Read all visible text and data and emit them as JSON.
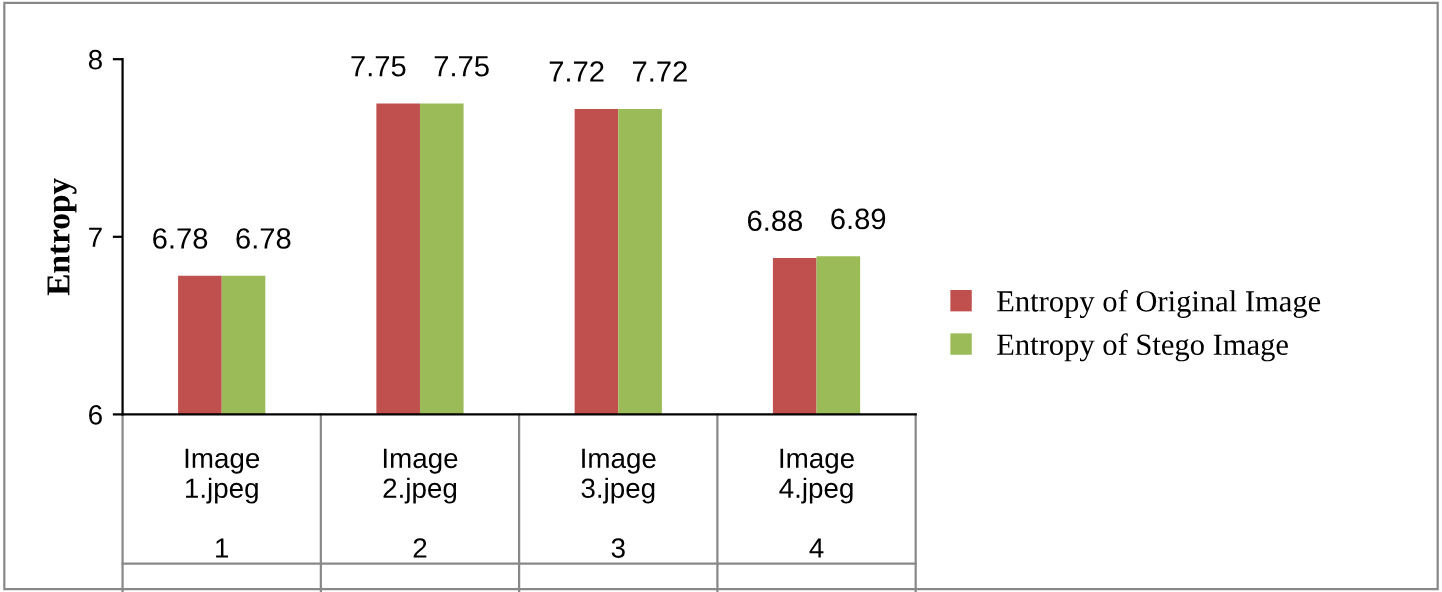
{
  "chart_data": {
    "type": "bar",
    "ylabel": "Entropy",
    "categories": [
      "Image\n1.jpeg\n\n1",
      "Image\n2.jpeg\n\n2",
      "Image\n3.jpeg\n\n3",
      "Image\n4.jpeg\n\n4"
    ],
    "series": [
      {
        "name": "Entropy of Original Image",
        "color": "#c0504d",
        "values": [
          6.78,
          7.75,
          7.72,
          6.88
        ]
      },
      {
        "name": "Entropy of Stego Image",
        "color": "#9bbb59",
        "values": [
          6.78,
          7.75,
          7.72,
          6.89
        ]
      }
    ],
    "ylim": [
      6,
      8
    ],
    "yticks": [
      6,
      7,
      8
    ],
    "data_labels": true,
    "legend": "right",
    "grid": false
  }
}
